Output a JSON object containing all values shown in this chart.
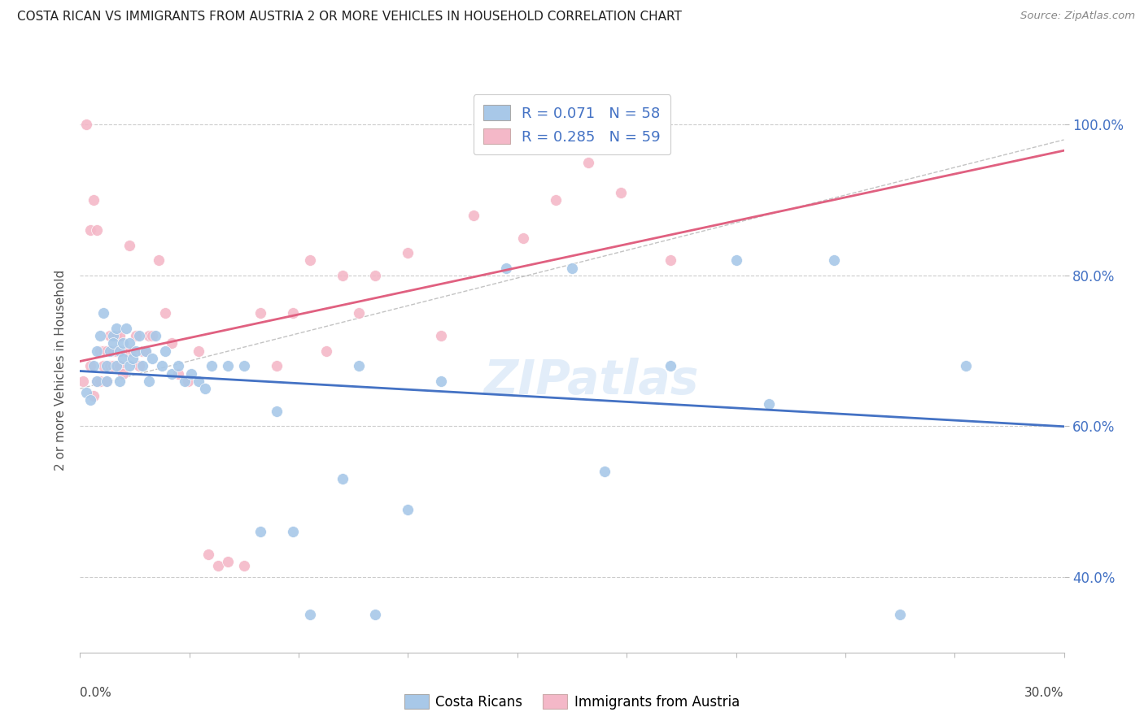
{
  "title": "COSTA RICAN VS IMMIGRANTS FROM AUSTRIA 2 OR MORE VEHICLES IN HOUSEHOLD CORRELATION CHART",
  "source": "Source: ZipAtlas.com",
  "ylabel": "2 or more Vehicles in Household",
  "legend_blue_r": "0.071",
  "legend_blue_n": "58",
  "legend_pink_r": "0.285",
  "legend_pink_n": "59",
  "legend_blue_label": "Costa Ricans",
  "legend_pink_label": "Immigrants from Austria",
  "blue_color": "#a8c8e8",
  "pink_color": "#f4b8c8",
  "blue_line_color": "#4472c4",
  "pink_line_color": "#e06080",
  "watermark": "ZIPatlas",
  "x_min": 0.0,
  "x_max": 0.3,
  "y_min": 0.3,
  "y_max": 1.05,
  "y_ticks": [
    0.4,
    0.6,
    0.8,
    1.0
  ],
  "y_tick_labels": [
    "40.0%",
    "60.0%",
    "80.0%",
    "100.0%"
  ],
  "blue_scatter_x": [
    0.002,
    0.003,
    0.004,
    0.005,
    0.005,
    0.006,
    0.007,
    0.008,
    0.008,
    0.009,
    0.01,
    0.01,
    0.011,
    0.011,
    0.012,
    0.012,
    0.013,
    0.013,
    0.014,
    0.015,
    0.015,
    0.016,
    0.017,
    0.018,
    0.019,
    0.02,
    0.021,
    0.022,
    0.023,
    0.025,
    0.026,
    0.028,
    0.03,
    0.032,
    0.034,
    0.036,
    0.038,
    0.04,
    0.045,
    0.05,
    0.055,
    0.06,
    0.065,
    0.07,
    0.08,
    0.085,
    0.09,
    0.1,
    0.11,
    0.13,
    0.15,
    0.16,
    0.18,
    0.2,
    0.21,
    0.23,
    0.25,
    0.27
  ],
  "blue_scatter_y": [
    0.645,
    0.635,
    0.68,
    0.66,
    0.7,
    0.72,
    0.75,
    0.68,
    0.66,
    0.7,
    0.72,
    0.71,
    0.73,
    0.68,
    0.7,
    0.66,
    0.71,
    0.69,
    0.73,
    0.68,
    0.71,
    0.69,
    0.7,
    0.72,
    0.68,
    0.7,
    0.66,
    0.69,
    0.72,
    0.68,
    0.7,
    0.67,
    0.68,
    0.66,
    0.67,
    0.66,
    0.65,
    0.68,
    0.68,
    0.68,
    0.46,
    0.62,
    0.46,
    0.35,
    0.53,
    0.68,
    0.35,
    0.49,
    0.66,
    0.81,
    0.81,
    0.54,
    0.68,
    0.82,
    0.63,
    0.82,
    0.35,
    0.68
  ],
  "pink_scatter_x": [
    0.001,
    0.002,
    0.003,
    0.003,
    0.004,
    0.004,
    0.005,
    0.005,
    0.006,
    0.006,
    0.007,
    0.007,
    0.008,
    0.008,
    0.009,
    0.009,
    0.01,
    0.01,
    0.011,
    0.011,
    0.012,
    0.012,
    0.013,
    0.013,
    0.014,
    0.015,
    0.016,
    0.017,
    0.018,
    0.019,
    0.02,
    0.021,
    0.022,
    0.024,
    0.026,
    0.028,
    0.03,
    0.033,
    0.036,
    0.039,
    0.042,
    0.045,
    0.05,
    0.055,
    0.06,
    0.065,
    0.07,
    0.075,
    0.08,
    0.085,
    0.09,
    0.1,
    0.11,
    0.12,
    0.135,
    0.145,
    0.155,
    0.165,
    0.18
  ],
  "pink_scatter_y": [
    0.66,
    1.0,
    0.86,
    0.68,
    0.9,
    0.64,
    0.86,
    0.66,
    0.66,
    0.7,
    0.7,
    0.68,
    0.7,
    0.66,
    0.72,
    0.68,
    0.7,
    0.68,
    0.72,
    0.7,
    0.68,
    0.72,
    0.7,
    0.67,
    0.7,
    0.84,
    0.7,
    0.72,
    0.68,
    0.7,
    0.7,
    0.72,
    0.72,
    0.82,
    0.75,
    0.71,
    0.67,
    0.66,
    0.7,
    0.43,
    0.415,
    0.42,
    0.415,
    0.75,
    0.68,
    0.75,
    0.82,
    0.7,
    0.8,
    0.75,
    0.8,
    0.83,
    0.72,
    0.88,
    0.85,
    0.9,
    0.95,
    0.91,
    0.82
  ],
  "diag_line_x": [
    0.0,
    0.3
  ],
  "diag_line_y": [
    0.65,
    0.98
  ]
}
